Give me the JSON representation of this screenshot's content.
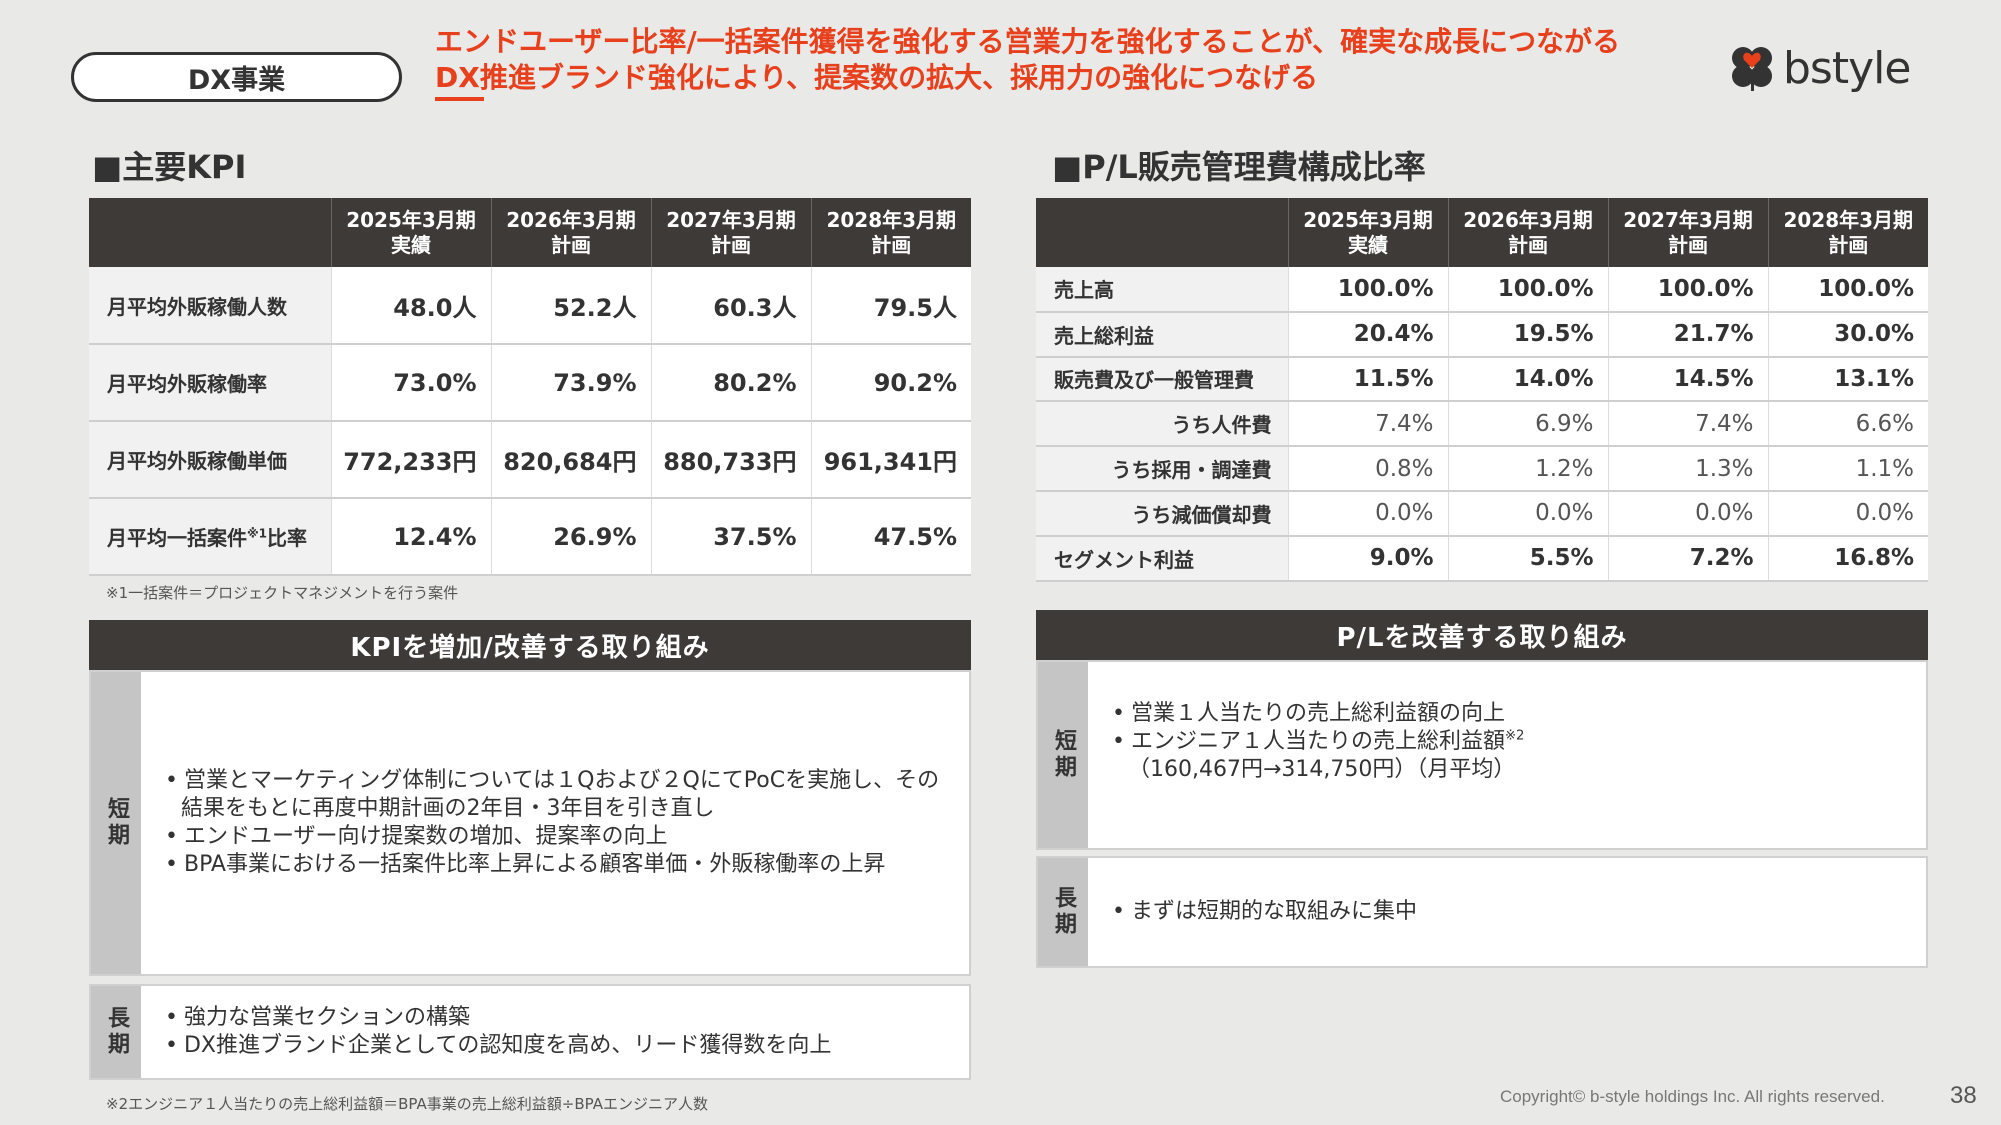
{
  "header": {
    "segment_label": "DX事業",
    "headline_line1": "エンドユーザー比率/一括案件獲得を強化する営業力を強化することが、確実な成長につながる",
    "headline_line2": "DX推進ブランド強化により、提案数の拡大、採用力の強化につなげる",
    "logo_text": "bstyle",
    "accent_color": "#e8401c",
    "logo_color": "#333333"
  },
  "kpi": {
    "title": "■主要KPI",
    "columns": [
      {
        "year": "2025年3月期",
        "type": "実績"
      },
      {
        "year": "2026年3月期",
        "type": "計画"
      },
      {
        "year": "2027年3月期",
        "type": "計画"
      },
      {
        "year": "2028年3月期",
        "type": "計画"
      }
    ],
    "rows": [
      {
        "label": "月平均外販稼働人数",
        "sup": "",
        "label_suffix": "",
        "values": [
          "48.0人",
          "52.2人",
          "60.3人",
          "79.5人"
        ]
      },
      {
        "label": "月平均外販稼働率",
        "sup": "",
        "label_suffix": "",
        "values": [
          "73.0%",
          "73.9%",
          "80.2%",
          "90.2%"
        ]
      },
      {
        "label": "月平均外販稼働単価",
        "sup": "",
        "label_suffix": "",
        "values": [
          "772,233円",
          "820,684円",
          "880,733円",
          "961,341円"
        ]
      },
      {
        "label": "月平均一括案件",
        "sup": "※1",
        "label_suffix": "比率",
        "values": [
          "12.4%",
          "26.9%",
          "37.5%",
          "47.5%"
        ]
      }
    ],
    "footnote": "※1一括案件＝プロジェクトマネジメントを行う案件"
  },
  "pl": {
    "title": "■P/L販売管理費構成比率",
    "columns": [
      {
        "year": "2025年3月期",
        "type": "実績"
      },
      {
        "year": "2026年3月期",
        "type": "計画"
      },
      {
        "year": "2027年3月期",
        "type": "計画"
      },
      {
        "year": "2028年3月期",
        "type": "計画"
      }
    ],
    "rows": [
      {
        "label": "売上高",
        "values": [
          "100.0%",
          "100.0%",
          "100.0%",
          "100.0%"
        ],
        "bold": true,
        "indent": false
      },
      {
        "label": "売上総利益",
        "values": [
          "20.4%",
          "19.5%",
          "21.7%",
          "30.0%"
        ],
        "bold": true,
        "indent": false
      },
      {
        "label": "販売費及び一般管理費",
        "values": [
          "11.5%",
          "14.0%",
          "14.5%",
          "13.1%"
        ],
        "bold": true,
        "indent": false
      },
      {
        "label": "うち人件費",
        "values": [
          "7.4%",
          "6.9%",
          "7.4%",
          "6.6%"
        ],
        "bold": false,
        "indent": true
      },
      {
        "label": "うち採用・調達費",
        "values": [
          "0.8%",
          "1.2%",
          "1.3%",
          "1.1%"
        ],
        "bold": false,
        "indent": true
      },
      {
        "label": "うち減価償却費",
        "values": [
          "0.0%",
          "0.0%",
          "0.0%",
          "0.0%"
        ],
        "bold": false,
        "indent": true
      },
      {
        "label": "セグメント利益",
        "values": [
          "9.0%",
          "5.5%",
          "7.2%",
          "16.8%"
        ],
        "bold": true,
        "indent": false
      }
    ]
  },
  "kpi_initiatives": {
    "banner": "KPIを増加/改善する取り組み",
    "short_label": "短期",
    "short_items": [
      "営業とマーケティング体制については１Qおよび２QにてPoCを実施し、その結果をもとに再度中期計画の2年目・3年目を引き直し",
      "エンドユーザー向け提案数の増加、提案率の向上",
      "BPA事業における一括案件比率上昇による顧客単価・外販稼働率の上昇"
    ],
    "long_label": "長期",
    "long_items": [
      "強力な営業セクションの構築",
      "DX推進ブランド企業としての認知度を高め、リード獲得数を向上"
    ],
    "footnote": "※2エンジニア１人当たりの売上総利益額＝BPA事業の売上総利益額÷BPAエンジニア人数"
  },
  "pl_initiatives": {
    "banner": "P/Lを改善する取り組み",
    "short_label": "短期",
    "short_item1": "営業１人当たりの売上総利益額の向上",
    "short_item2_pre": "エンジニア１人当たりの売上総利益額",
    "short_item2_sup": "※2",
    "short_item2_post": "（160,467円→314,750円）（月平均）",
    "long_label": "長期",
    "long_items": [
      "まずは短期的な取組みに集中"
    ]
  },
  "footer": {
    "copyright": "Copyright© b-style holdings Inc. All rights reserved.",
    "page_number": "38"
  }
}
